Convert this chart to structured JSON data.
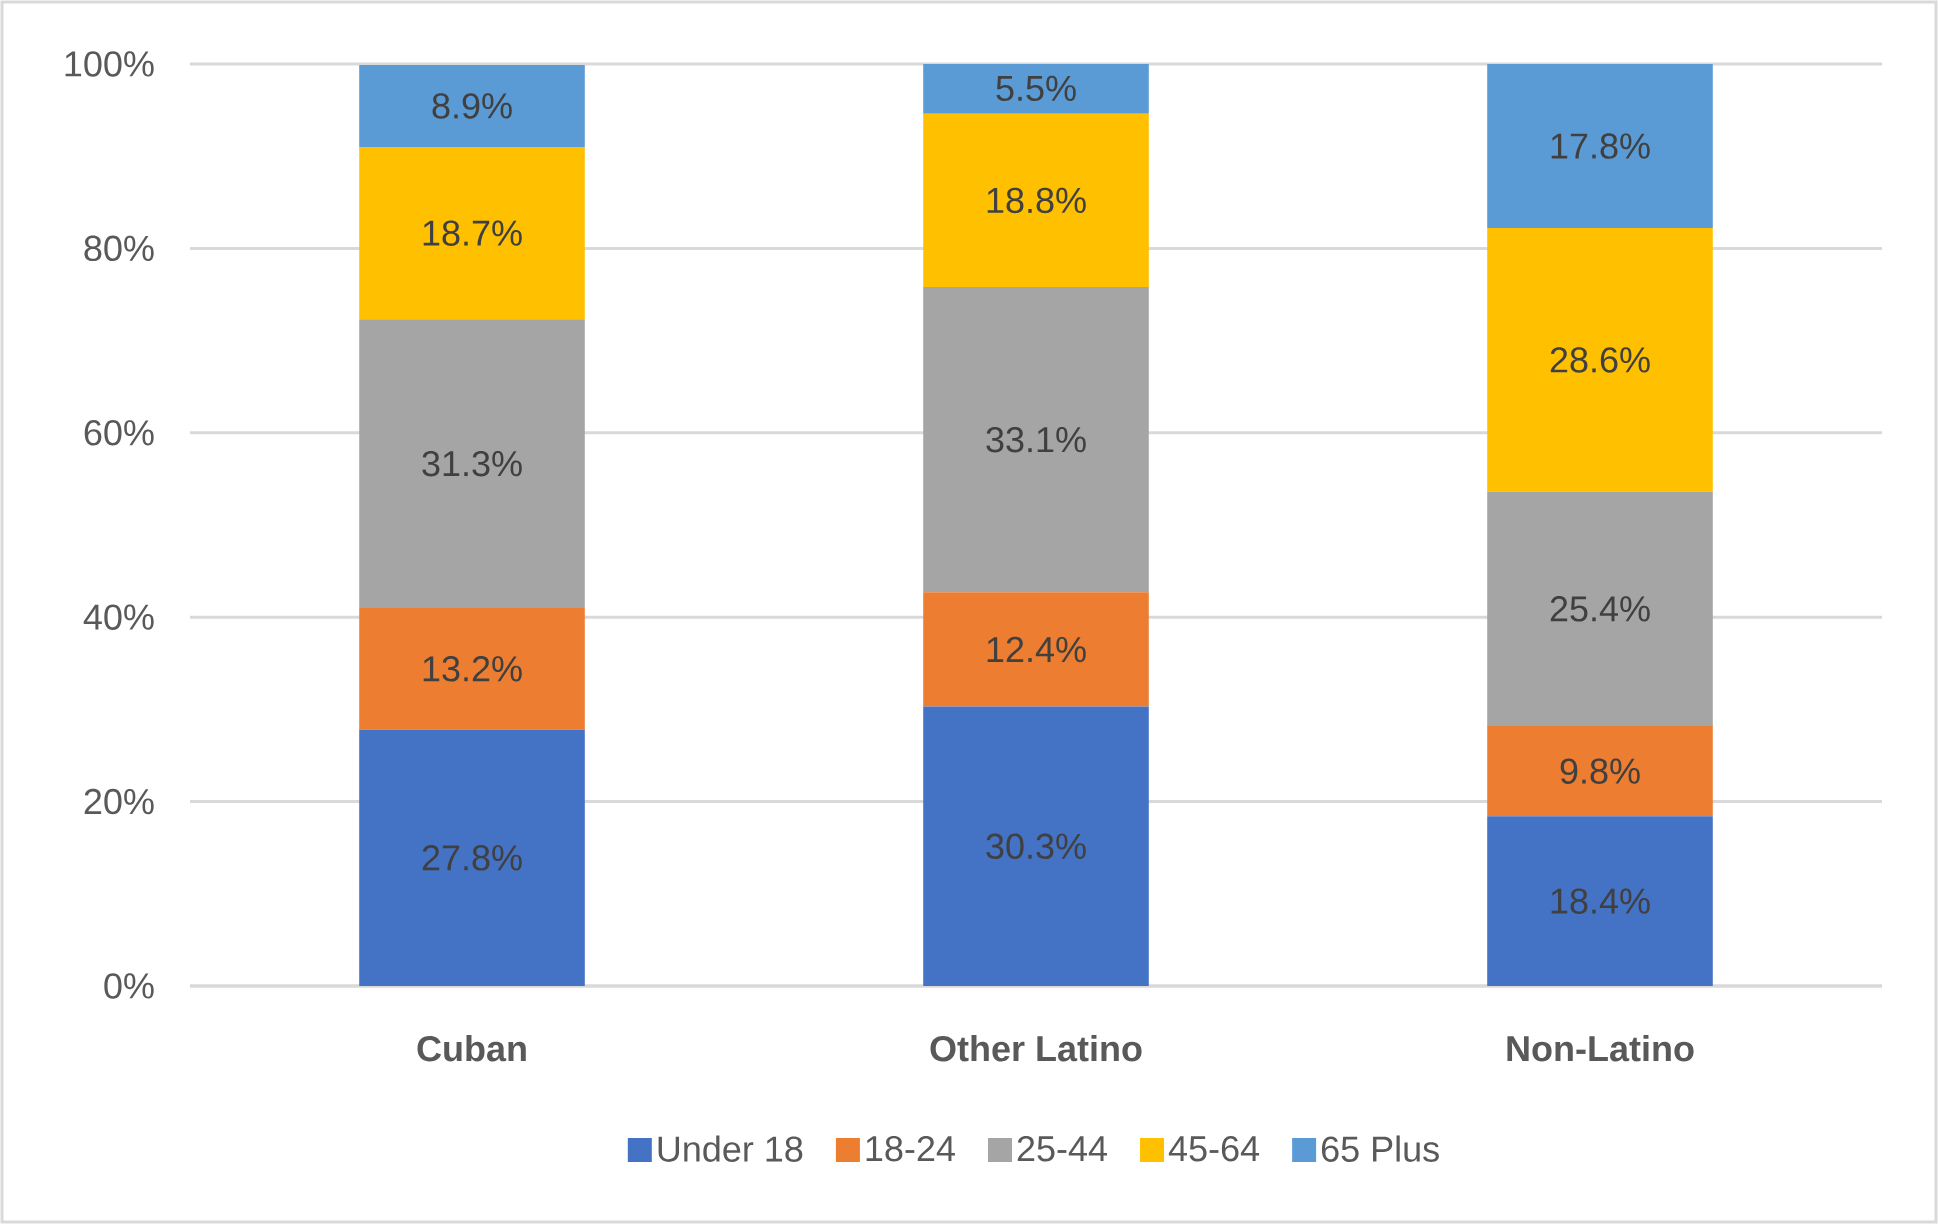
{
  "chart_data": {
    "type": "bar",
    "stacked": true,
    "categories": [
      "Cuban",
      "Other Latino",
      "Non-Latino"
    ],
    "series": [
      {
        "name": "Under 18",
        "color": "#4472c4",
        "values": [
          27.8,
          30.3,
          18.4
        ],
        "value_labels": [
          "27.8%",
          "30.3%",
          "18.4%"
        ]
      },
      {
        "name": "18-24",
        "color": "#ed7d31",
        "values": [
          13.2,
          12.4,
          9.8
        ],
        "value_labels": [
          "13.2%",
          "12.4%",
          "9.8%"
        ]
      },
      {
        "name": "25-44",
        "color": "#a5a5a5",
        "values": [
          31.3,
          33.1,
          25.4
        ],
        "value_labels": [
          "31.3%",
          "33.1%",
          "25.4%"
        ]
      },
      {
        "name": "45-64",
        "color": "#ffc000",
        "values": [
          18.7,
          18.8,
          28.6
        ],
        "value_labels": [
          "18.7%",
          "18.8%",
          "28.6%"
        ]
      },
      {
        "name": "65 Plus",
        "color": "#5b9bd5",
        "values": [
          8.9,
          5.5,
          17.8
        ],
        "value_labels": [
          "8.9%",
          "5.5%",
          "17.8%"
        ]
      }
    ],
    "ylim": [
      0,
      100
    ],
    "yticks": [
      {
        "value": 0,
        "label": "0%"
      },
      {
        "value": 20,
        "label": "20%"
      },
      {
        "value": 40,
        "label": "40%"
      },
      {
        "value": 60,
        "label": "60%"
      },
      {
        "value": 80,
        "label": "80%"
      },
      {
        "value": 100,
        "label": "100%"
      }
    ],
    "grid": "y",
    "legend": "bottom"
  }
}
